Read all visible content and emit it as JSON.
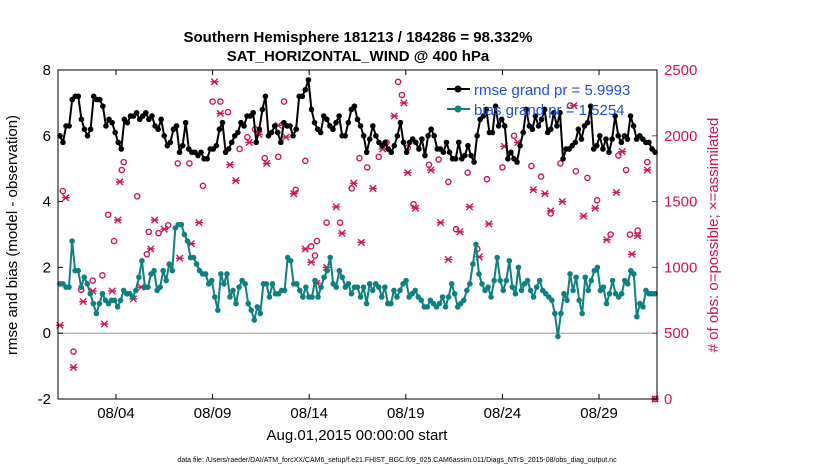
{
  "chart_data": {
    "type": "line",
    "title_line1": "Southern Hemisphere 181213 / 184286 = 98.332%",
    "title_line2": "SAT_HORIZONTAL_WIND @ 400 hPa",
    "xlabel": "Aug.01,2015 00:00:00 start",
    "ylabel_left": "rmse and bias (model - observation)",
    "ylabel_right": "# of obs: o=possible; ×=assimilated",
    "footnote": "data file: /Users/raeder/DAI/ATM_forcXX/CAM6_setup/f.e21.FHIST_BGC.f09_025.CAM6assim.011/Diags_NTrS_2015-08/obs_diag_output.nc",
    "x_ticks": [
      {
        "day": 4,
        "label": "08/04"
      },
      {
        "day": 9,
        "label": "08/09"
      },
      {
        "day": 14,
        "label": "08/14"
      },
      {
        "day": 19,
        "label": "08/19"
      },
      {
        "day": 24,
        "label": "08/24"
      },
      {
        "day": 29,
        "label": "08/29"
      }
    ],
    "xlim": [
      1.0,
      32.0
    ],
    "ylim_left": [
      -2,
      8
    ],
    "yticks_left": [
      -2,
      0,
      2,
      4,
      6,
      8
    ],
    "ylim_right": [
      0,
      2500
    ],
    "yticks_right": [
      0,
      500,
      1000,
      1500,
      2000,
      2500
    ],
    "grid": false,
    "legend_position": "top-right",
    "colors": {
      "rmse": "#000000",
      "bias": "#0f8080",
      "obs": "#d1145a",
      "legend_text": "#1f4fe0",
      "zero_line": "#a0a0a0"
    },
    "series": [
      {
        "name": "rmse grand pr = 5.9993",
        "color": "#000000",
        "values": [
          6.0,
          5.8,
          6.3,
          6.3,
          7.1,
          7.2,
          7.2,
          6.5,
          6.2,
          6.0,
          6.2,
          7.2,
          7.1,
          7.1,
          6.9,
          6.3,
          6.5,
          6.4,
          6.1,
          5.8,
          5.6,
          6.5,
          6.4,
          6.6,
          6.6,
          6.7,
          6.5,
          6.6,
          6.7,
          6.5,
          6.6,
          6.3,
          6.2,
          6.5,
          6.0,
          5.7,
          5.8,
          6.2,
          6.3,
          5.5,
          5.7,
          6.4,
          5.6,
          5.5,
          5.5,
          5.4,
          5.5,
          5.3,
          5.3,
          5.6,
          5.6,
          5.7,
          6.2,
          6.4,
          5.5,
          5.6,
          5.8,
          6.0,
          6.1,
          6.4,
          6.3,
          6.6,
          6.6,
          6.7,
          5.8,
          6.2,
          6.8,
          7.2,
          6.0,
          6.1,
          6.3,
          6.1,
          5.8,
          6.4,
          6.3,
          6.3,
          6.0,
          6.2,
          7.2,
          7.2,
          7.4,
          7.7,
          6.8,
          6.4,
          6.2,
          6.1,
          6.6,
          6.5,
          6.3,
          6.2,
          6.4,
          6.6,
          6.0,
          6.0,
          6.4,
          6.8,
          6.9,
          6.5,
          6.3,
          6.0,
          5.5,
          5.9,
          6.3,
          6.0,
          5.8,
          5.7,
          5.8,
          5.6,
          5.5,
          5.7,
          6.0,
          6.4,
          5.8,
          5.5,
          5.8,
          5.9,
          5.8,
          5.6,
          5.9,
          5.4,
          6.0,
          6.2,
          6.0,
          5.6,
          5.6,
          5.5,
          5.8,
          5.5,
          5.3,
          5.3,
          5.8,
          5.3,
          5.4,
          5.7,
          5.4,
          5.2,
          6.0,
          6.5,
          6.6,
          6.8,
          6.1,
          6.1,
          6.9,
          6.3,
          6.5,
          6.3,
          5.3,
          5.5,
          5.3,
          5.2,
          5.7,
          6.1,
          6.8,
          6.3,
          6.2,
          6.6,
          6.3,
          6.5,
          6.8,
          6.1,
          6.2,
          6.7,
          6.3,
          6.7,
          5.3,
          5.6,
          5.6,
          5.7,
          5.8,
          6.2,
          5.9,
          6.3,
          6.4,
          6.9,
          5.6,
          5.7,
          6.0,
          5.6,
          5.9,
          5.5,
          5.9,
          6.6,
          6.0,
          5.8,
          6.0,
          5.9,
          6.6,
          6.3,
          5.9,
          6.0,
          5.9,
          5.8,
          5.8,
          5.6,
          5.5
        ],
        "marker": "asterisk"
      },
      {
        "name": "bias grand pr = 1.5254",
        "color": "#0f8080",
        "values": [
          1.5,
          1.5,
          1.4,
          1.4,
          2.8,
          1.9,
          1.9,
          1.4,
          1.7,
          1.5,
          1.2,
          0.9,
          0.6,
          0.9,
          1.2,
          1.0,
          0.9,
          1.0,
          1.0,
          0.8,
          1.0,
          1.3,
          1.2,
          1.2,
          1.1,
          1.3,
          1.7,
          2.2,
          1.4,
          1.4,
          1.8,
          1.9,
          1.3,
          1.4,
          1.9,
          1.6,
          2.1,
          1.9,
          3.2,
          3.3,
          3.3,
          3.0,
          2.8,
          2.3,
          2.3,
          2.1,
          1.9,
          1.8,
          1.8,
          1.5,
          1.6,
          1.1,
          0.7,
          1.8,
          1.5,
          1.8,
          1.1,
          1.3,
          0.9,
          1.4,
          1.6,
          1.5,
          0.9,
          0.7,
          0.4,
          0.8,
          0.6,
          1.5,
          1.5,
          1.1,
          1.5,
          1.2,
          1.2,
          1.3,
          1.3,
          2.3,
          2.2,
          1.5,
          1.5,
          1.3,
          1.1,
          1.4,
          1.1,
          1.1,
          1.6,
          1.1,
          1.4,
          1.7,
          1.9,
          2.3,
          1.5,
          1.4,
          1.9,
          1.7,
          1.4,
          1.5,
          1.2,
          1.4,
          1.4,
          1.1,
          1.4,
          0.9,
          1.5,
          1.3,
          1.5,
          1.4,
          1.1,
          1.4,
          0.9,
          0.9,
          1.3,
          1.1,
          1.3,
          1.5,
          1.6,
          1.1,
          1.2,
          1.3,
          1.1,
          1.0,
          0.8,
          0.8,
          1.0,
          0.9,
          0.8,
          0.9,
          1.1,
          0.8,
          1.1,
          1.5,
          1.2,
          0.8,
          0.9,
          1.0,
          1.3,
          1.5,
          2.1,
          2.7,
          1.8,
          1.5,
          1.3,
          1.4,
          1.1,
          1.6,
          2.3,
          1.6,
          1.3,
          1.6,
          2.2,
          1.4,
          1.2,
          2.0,
          1.3,
          1.5,
          1.6,
          1.3,
          1.1,
          1.4,
          1.6,
          1.3,
          1.2,
          1.1,
          1.0,
          0.6,
          -0.1,
          0.6,
          1.2,
          1.0,
          1.8,
          1.3,
          1.7,
          1.0,
          0.6,
          1.7,
          1.3,
          1.6,
          1.9,
          2.0,
          1.3,
          1.4,
          0.9,
          1.2,
          1.6,
          1.2,
          1.1,
          1.2,
          1.6,
          1.5,
          1.9,
          1.8,
          0.5,
          0.9,
          0.8,
          1.3,
          1.2,
          1.2,
          1.2
        ],
        "marker": "dot"
      }
    ],
    "obs_possible_points": [
      [
        1.25,
        1580
      ],
      [
        1.8,
        360
      ],
      [
        2.2,
        830
      ],
      [
        2.8,
        900
      ],
      [
        3.3,
        940
      ],
      [
        3.6,
        1400
      ],
      [
        3.9,
        1200
      ],
      [
        4.3,
        1740
      ],
      [
        4.4,
        1800
      ],
      [
        5.1,
        1540
      ],
      [
        5.6,
        1100
      ],
      [
        5.7,
        1270
      ],
      [
        6.2,
        1260
      ],
      [
        6.7,
        1320
      ],
      [
        7.2,
        1790
      ],
      [
        7.8,
        1790
      ],
      [
        8.5,
        1620
      ],
      [
        9.0,
        2260
      ],
      [
        9.4,
        2260
      ],
      [
        9.8,
        2180
      ],
      [
        10.4,
        1900
      ],
      [
        10.8,
        1990
      ],
      [
        11.2,
        2050
      ],
      [
        11.7,
        1830
      ],
      [
        12.4,
        1840
      ],
      [
        12.7,
        2260
      ],
      [
        13.3,
        1590
      ],
      [
        13.8,
        1810
      ],
      [
        14.1,
        1160
      ],
      [
        14.3,
        1090
      ],
      [
        14.4,
        1200
      ],
      [
        14.9,
        1340
      ],
      [
        15.6,
        1340
      ],
      [
        16.2,
        1600
      ],
      [
        16.6,
        1830
      ],
      [
        17.0,
        1760
      ],
      [
        17.6,
        1840
      ],
      [
        18.0,
        1950
      ],
      [
        18.6,
        2410
      ],
      [
        18.8,
        2310
      ],
      [
        19.1,
        1910
      ],
      [
        19.4,
        1480
      ],
      [
        20.2,
        1780
      ],
      [
        20.7,
        1820
      ],
      [
        21.2,
        1650
      ],
      [
        21.6,
        1290
      ],
      [
        22.2,
        1720
      ],
      [
        22.7,
        1140
      ],
      [
        23.2,
        1670
      ],
      [
        24.0,
        1760
      ],
      [
        24.6,
        2000
      ],
      [
        25.5,
        1770
      ],
      [
        26.0,
        1690
      ],
      [
        26.5,
        1410
      ],
      [
        27.0,
        1790
      ],
      [
        27.5,
        2230
      ],
      [
        27.8,
        1730
      ],
      [
        28.4,
        1680
      ],
      [
        28.9,
        1510
      ],
      [
        29.6,
        1250
      ],
      [
        30.0,
        1850
      ],
      [
        30.4,
        1740
      ],
      [
        30.6,
        1250
      ],
      [
        31.0,
        1280
      ],
      [
        31.5,
        1800
      ],
      [
        31.9,
        0
      ]
    ],
    "obs_assimilated_points": [
      [
        1.1,
        560
      ],
      [
        1.4,
        1530
      ],
      [
        1.8,
        240
      ],
      [
        2.3,
        740
      ],
      [
        2.8,
        820
      ],
      [
        3.4,
        570
      ],
      [
        3.8,
        820
      ],
      [
        4.1,
        1360
      ],
      [
        4.2,
        1650
      ],
      [
        4.9,
        760
      ],
      [
        5.3,
        850
      ],
      [
        5.8,
        1140
      ],
      [
        6.0,
        1360
      ],
      [
        6.5,
        1290
      ],
      [
        7.3,
        1070
      ],
      [
        7.9,
        1180
      ],
      [
        8.3,
        1340
      ],
      [
        9.1,
        2410
      ],
      [
        9.4,
        2170
      ],
      [
        9.9,
        1780
      ],
      [
        10.2,
        1660
      ],
      [
        10.9,
        1950
      ],
      [
        11.4,
        2010
      ],
      [
        11.8,
        1790
      ],
      [
        12.4,
        2080
      ],
      [
        12.8,
        1990
      ],
      [
        13.2,
        1560
      ],
      [
        13.8,
        1140
      ],
      [
        14.1,
        1040
      ],
      [
        14.4,
        880
      ],
      [
        14.9,
        1000
      ],
      [
        15.4,
        1460
      ],
      [
        15.7,
        1260
      ],
      [
        16.3,
        1640
      ],
      [
        16.7,
        1190
      ],
      [
        17.3,
        1600
      ],
      [
        17.8,
        1900
      ],
      [
        18.4,
        2150
      ],
      [
        18.9,
        2250
      ],
      [
        19.1,
        1720
      ],
      [
        19.5,
        1450
      ],
      [
        20.3,
        1740
      ],
      [
        20.8,
        1340
      ],
      [
        21.2,
        1060
      ],
      [
        21.8,
        1270
      ],
      [
        22.3,
        1460
      ],
      [
        22.8,
        1080
      ],
      [
        23.3,
        1330
      ],
      [
        24.1,
        1920
      ],
      [
        24.8,
        1950
      ],
      [
        25.6,
        1590
      ],
      [
        26.2,
        1560
      ],
      [
        26.5,
        1430
      ],
      [
        27.1,
        1500
      ],
      [
        27.7,
        2230
      ],
      [
        28.2,
        1390
      ],
      [
        28.8,
        1450
      ],
      [
        29.4,
        1210
      ],
      [
        29.9,
        1570
      ],
      [
        30.2,
        1880
      ],
      [
        30.7,
        1100
      ],
      [
        31.0,
        1240
      ],
      [
        31.5,
        1740
      ],
      [
        31.9,
        0
      ]
    ]
  }
}
